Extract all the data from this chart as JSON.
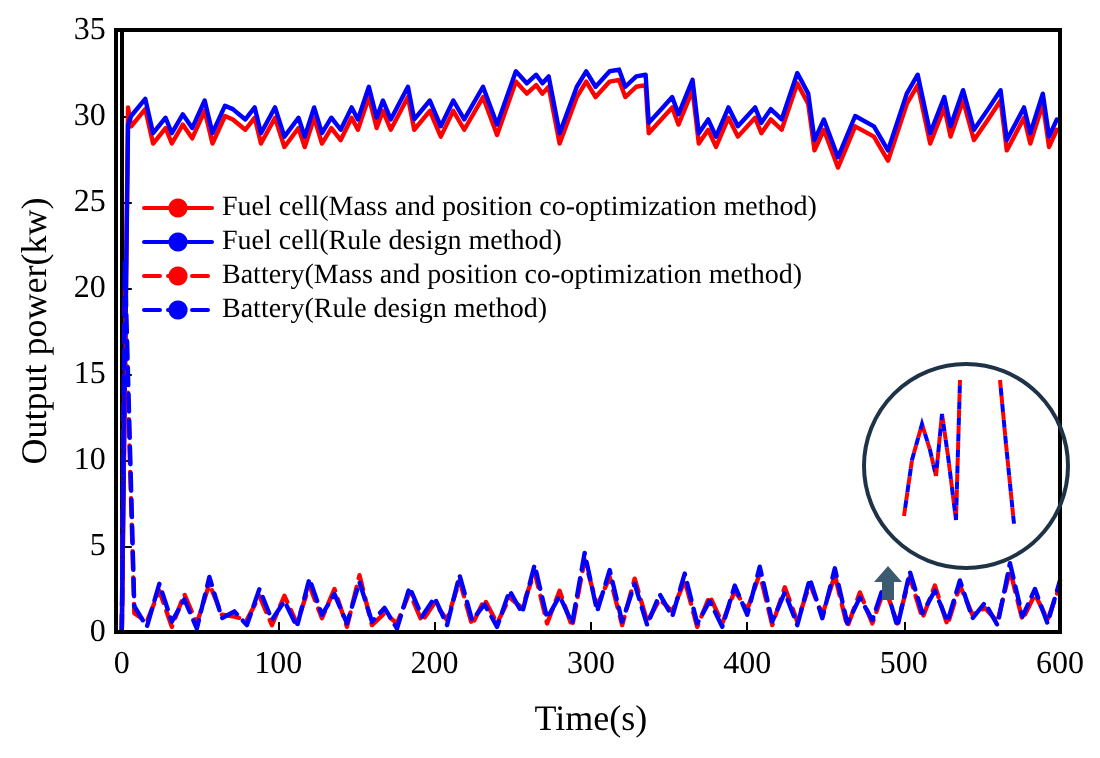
{
  "chart_data": {
    "type": "line",
    "xlabel": "Time(s)",
    "ylabel": "Output power(kw)",
    "xlim": [
      0,
      600
    ],
    "xticks": [
      0,
      100,
      200,
      300,
      400,
      500,
      600
    ],
    "ylim": [
      0,
      35
    ],
    "yticks": [
      0,
      5,
      10,
      15,
      20,
      25,
      30,
      35
    ],
    "grid": false,
    "legend": "left",
    "marker": "none",
    "x": [
      0,
      4,
      6,
      15,
      20,
      28,
      32,
      39,
      45,
      53,
      58,
      66,
      71,
      79,
      85,
      89,
      98,
      104,
      113,
      117,
      123,
      128,
      134,
      140,
      147,
      151,
      158,
      163,
      167,
      172,
      183,
      187,
      197,
      204,
      212,
      219,
      231,
      240,
      252,
      259,
      265,
      269,
      273,
      280,
      291,
      297,
      303,
      312,
      318,
      322,
      329,
      335,
      337,
      346,
      352,
      356,
      365,
      369,
      375,
      380,
      388,
      394,
      405,
      409,
      415,
      422,
      432,
      439,
      443,
      449,
      458,
      469,
      481,
      490,
      502,
      509,
      517,
      526,
      530,
      538,
      545,
      554,
      562,
      566,
      577,
      581,
      589,
      593,
      598
    ],
    "series": [
      {
        "name": "Fuel cell(Mass and position co-optimization method)",
        "color": "#ff0000",
        "line_style": "solid",
        "values": [
          0,
          30.5,
          29.4,
          30.4,
          28.4,
          29.3,
          28.4,
          29.5,
          28.7,
          30.3,
          28.4,
          30.0,
          29.8,
          29.2,
          29.9,
          28.4,
          29.9,
          28.2,
          29.3,
          28.2,
          29.9,
          28.4,
          29.3,
          28.6,
          29.9,
          29.2,
          31.1,
          29.3,
          30.3,
          29.2,
          31.1,
          29.2,
          30.3,
          28.8,
          30.3,
          29.2,
          31.1,
          28.9,
          32.0,
          31.3,
          31.8,
          31.3,
          31.7,
          28.4,
          31.1,
          32.0,
          31.1,
          32.0,
          32.1,
          31.1,
          31.7,
          31.8,
          29.0,
          29.9,
          30.5,
          29.5,
          31.5,
          28.4,
          29.2,
          28.2,
          29.9,
          28.8,
          29.9,
          29.0,
          29.8,
          29.2,
          31.9,
          30.7,
          28.0,
          29.2,
          27.0,
          29.4,
          28.8,
          27.4,
          30.7,
          31.8,
          28.4,
          30.5,
          28.8,
          30.9,
          28.6,
          29.8,
          30.9,
          28.0,
          29.9,
          28.4,
          30.7,
          28.2,
          29.2
        ]
      },
      {
        "name": "Fuel cell(Rule design method)",
        "color": "#0000ff",
        "line_style": "solid",
        "values": [
          0,
          29.5,
          30.0,
          31.0,
          29.0,
          29.9,
          29.0,
          30.1,
          29.3,
          30.9,
          29.0,
          30.6,
          30.4,
          29.8,
          30.5,
          29.0,
          30.5,
          28.8,
          29.9,
          28.8,
          30.5,
          29.0,
          29.9,
          29.2,
          30.5,
          29.8,
          31.7,
          29.9,
          30.9,
          29.8,
          31.7,
          29.8,
          30.9,
          29.4,
          30.9,
          29.8,
          31.7,
          29.5,
          32.6,
          31.9,
          32.4,
          31.9,
          32.3,
          29.0,
          31.7,
          32.6,
          31.7,
          32.6,
          32.7,
          31.7,
          32.3,
          32.4,
          29.6,
          30.5,
          31.1,
          30.1,
          32.1,
          29.0,
          29.8,
          28.8,
          30.5,
          29.4,
          30.5,
          29.6,
          30.4,
          29.8,
          32.5,
          31.3,
          28.6,
          29.8,
          27.6,
          30.0,
          29.4,
          28.0,
          31.3,
          32.4,
          29.0,
          31.1,
          29.4,
          31.5,
          29.2,
          30.4,
          31.5,
          28.6,
          30.5,
          29.0,
          31.3,
          28.8,
          29.8
        ]
      },
      {
        "name": "Battery(Mass and position co-optimization method)",
        "color": "#ff0000",
        "line_style": "dashed",
        "x": [
          0,
          2,
          8,
          16,
          24,
          32,
          40,
          48,
          56,
          64,
          72,
          80,
          88,
          96,
          104,
          112,
          120,
          128,
          136,
          144,
          152,
          160,
          168,
          176,
          184,
          192,
          200,
          208,
          216,
          224,
          232,
          240,
          248,
          256,
          264,
          272,
          280,
          288,
          296,
          304,
          312,
          320,
          328,
          336,
          344,
          352,
          360,
          368,
          376,
          384,
          392,
          400,
          408,
          416,
          424,
          432,
          440,
          448,
          456,
          464,
          472,
          480,
          488,
          496,
          504,
          512,
          520,
          528,
          536,
          544,
          552,
          560,
          568,
          576,
          584,
          592,
          600
        ],
        "values": [
          0,
          20,
          1.1,
          0.6,
          2.4,
          0.3,
          2.2,
          0.5,
          2.8,
          1.0,
          0.9,
          0.7,
          2.1,
          0.4,
          2.1,
          0.5,
          2.7,
          0.8,
          2.5,
          0.3,
          3.3,
          0.4,
          1.1,
          0.5,
          2.3,
          0.6,
          1.7,
          0.7,
          3.0,
          0.4,
          1.9,
          0.5,
          2.0,
          1.4,
          3.5,
          0.5,
          2.4,
          0.3,
          4.2,
          1.5,
          3.2,
          0.4,
          3.1,
          0.6,
          1.9,
          1.2,
          3.0,
          0.3,
          2.1,
          0.5,
          2.4,
          1.3,
          3.4,
          0.4,
          2.6,
          0.6,
          2.8,
          1.0,
          3.3,
          0.3,
          2.3,
          0.5,
          2.6,
          0.5,
          3.2,
          0.8,
          2.7,
          0.4,
          2.7,
          1.0,
          1.4,
          0.6,
          3.6,
          0.7,
          2.2,
          0.7,
          2.7
        ]
      },
      {
        "name": "Battery(Rule design method)",
        "color": "#0000ff",
        "line_style": "dashed",
        "x": [
          0,
          2,
          8,
          16,
          24,
          32,
          40,
          48,
          56,
          64,
          72,
          80,
          88,
          96,
          104,
          112,
          120,
          128,
          136,
          144,
          152,
          160,
          168,
          176,
          184,
          192,
          200,
          208,
          216,
          224,
          232,
          240,
          248,
          256,
          264,
          272,
          280,
          288,
          296,
          304,
          312,
          320,
          328,
          336,
          344,
          352,
          360,
          368,
          376,
          384,
          392,
          400,
          408,
          416,
          424,
          432,
          440,
          448,
          456,
          464,
          472,
          480,
          488,
          496,
          504,
          512,
          520,
          528,
          536,
          544,
          552,
          560,
          568,
          576,
          584,
          592,
          600
        ],
        "values": [
          0,
          21.5,
          1.5,
          0.3,
          2.8,
          0.6,
          1.9,
          0.2,
          3.2,
          0.8,
          1.2,
          0.4,
          2.5,
          0.7,
          1.8,
          0.3,
          3.1,
          1.0,
          2.2,
          0.5,
          2.9,
          0.6,
          1.4,
          0.2,
          2.6,
          0.9,
          2.0,
          0.4,
          3.3,
          0.7,
          1.6,
          0.3,
          2.4,
          1.1,
          3.9,
          0.8,
          2.1,
          0.5,
          4.6,
          1.2,
          3.6,
          0.6,
          2.8,
          0.4,
          2.2,
          0.9,
          3.4,
          0.5,
          1.8,
          0.3,
          2.7,
          1.0,
          3.8,
          0.6,
          2.3,
          0.4,
          3.1,
          0.8,
          3.7,
          0.5,
          2.0,
          0.7,
          2.9,
          0.3,
          3.5,
          1.1,
          2.4,
          0.6,
          3.0,
          0.8,
          1.7,
          0.4,
          4.0,
          0.9,
          2.5,
          0.5,
          3.0
        ]
      }
    ]
  }
}
